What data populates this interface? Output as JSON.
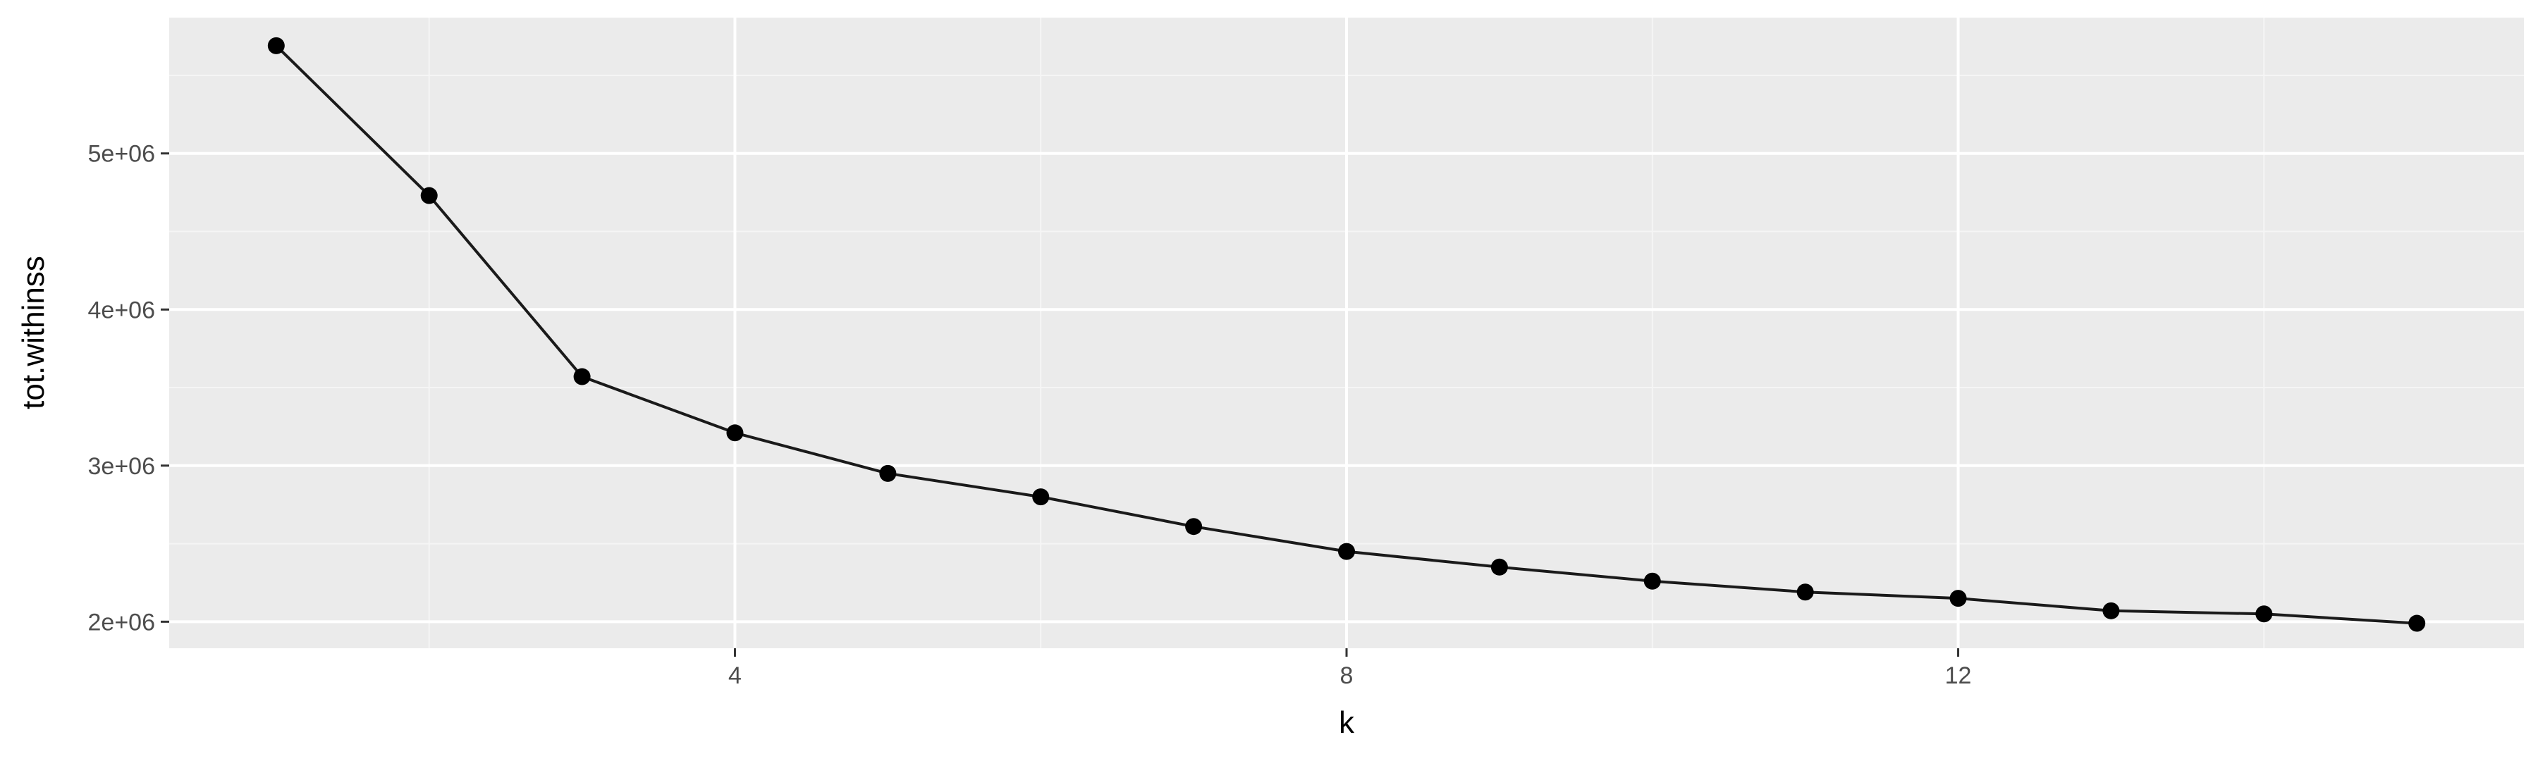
{
  "colors": {
    "panel_background": "#ebebeb",
    "grid_major": "#ffffff",
    "grid_minor": "#f5f5f5",
    "line": "#1a1a1a",
    "point": "#000000"
  },
  "chart_data": {
    "type": "line",
    "xlabel": "k",
    "ylabel": "tot.withinss",
    "xlim": [
      0.3,
      15.7
    ],
    "ylim": [
      1830000,
      5870000
    ],
    "x_major_ticks": [
      4,
      8,
      12
    ],
    "x_minor_ticks": [
      2,
      6,
      10,
      14
    ],
    "y_major_ticks": [
      2000000,
      3000000,
      4000000,
      5000000
    ],
    "y_minor_ticks": [
      2500000,
      3500000,
      4500000,
      5500000
    ],
    "y_tick_labels": [
      "2e+06",
      "3e+06",
      "4e+06",
      "5e+06"
    ],
    "x_tick_labels": [
      "4",
      "8",
      "12"
    ],
    "grid": true,
    "legend": "none",
    "series": [
      {
        "x": [
          1,
          2,
          3,
          4,
          5,
          6,
          7,
          8,
          9,
          10,
          11,
          12,
          13,
          14,
          15
        ],
        "values": [
          5690000,
          4730000,
          3570000,
          3210000,
          2950000,
          2800000,
          2610000,
          2450000,
          2350000,
          2260000,
          2190000,
          2150000,
          2070000,
          2050000,
          1990000
        ]
      }
    ]
  }
}
